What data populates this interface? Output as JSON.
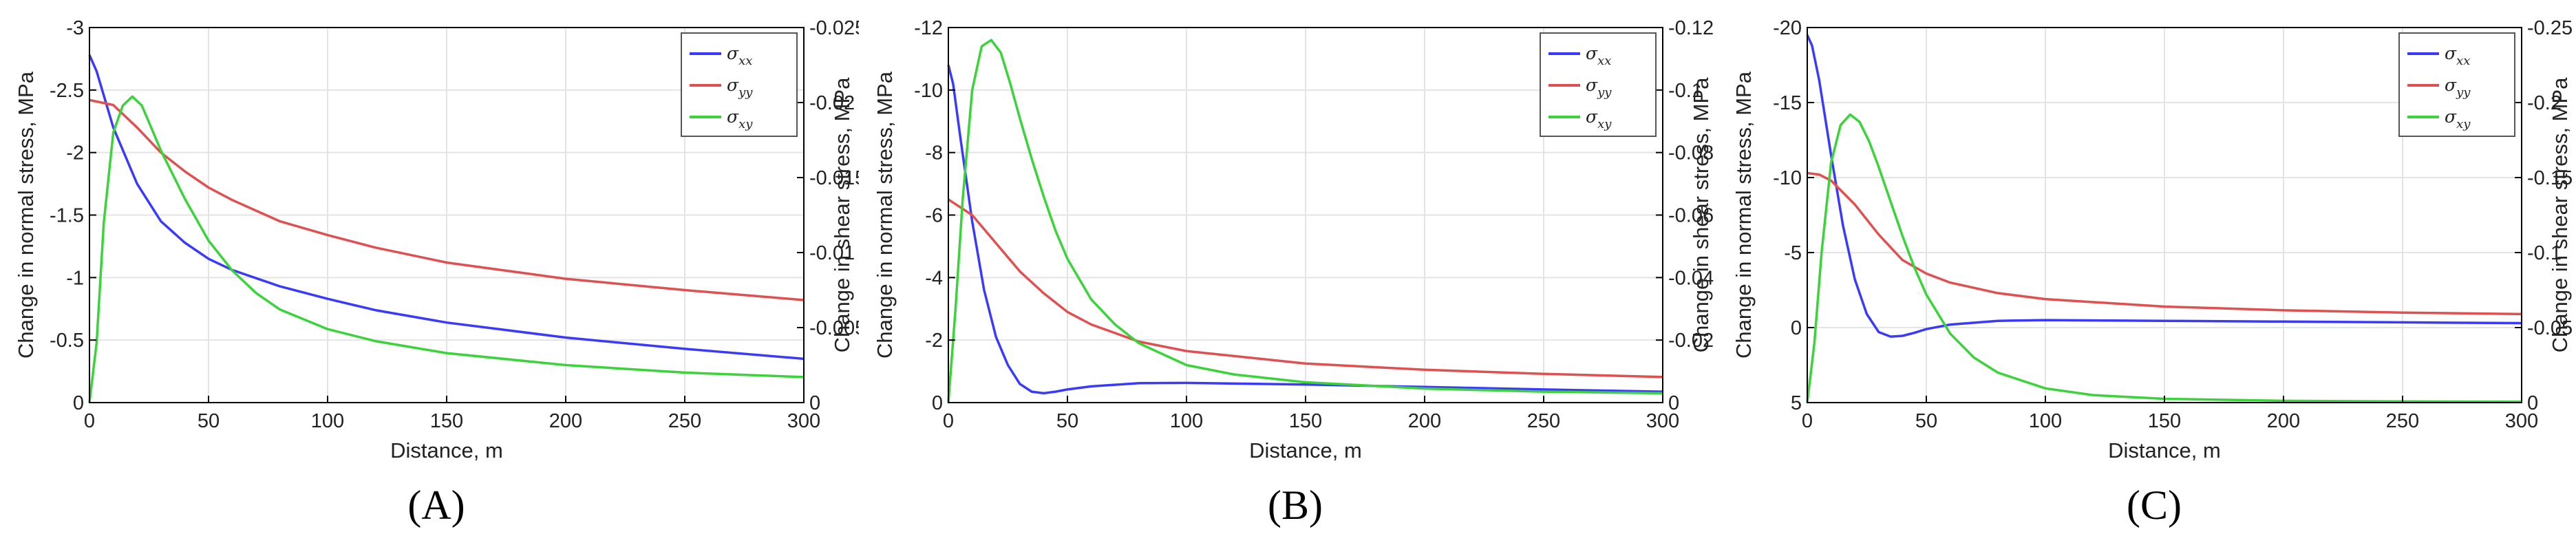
{
  "chart_data": [
    {
      "type": "line",
      "caption": "(A)",
      "xlabel": "Distance, m",
      "ylabel": "Change in normal stress, MPa",
      "ylabel_right": "Change in shear stress, MPa",
      "xlim": [
        0,
        300
      ],
      "ylim": [
        0,
        -3
      ],
      "ylim_right": [
        0,
        -0.025
      ],
      "x_ticks": [
        "0",
        "50",
        "100",
        "150",
        "200",
        "250",
        "300"
      ],
      "y_ticks": [
        "0",
        "-0.5",
        "-1",
        "-1.5",
        "-2",
        "-2.5",
        "-3"
      ],
      "y_ticks_right": [
        "0",
        "-0.005",
        "-0.01",
        "-0.015",
        "-0.02",
        "-0.025"
      ],
      "grid": true,
      "legend_position": "top-right",
      "series": [
        {
          "name": "σxx",
          "label_main": "σ",
          "label_sub": "xx",
          "axis": "left",
          "color": "#3a3aff",
          "x": [
            0,
            3,
            10,
            20,
            30,
            40,
            50,
            60,
            80,
            100,
            120,
            150,
            200,
            250,
            300
          ],
          "y": [
            -2.78,
            -2.65,
            -2.2,
            -1.75,
            -1.45,
            -1.28,
            -1.15,
            -1.06,
            -0.93,
            -0.83,
            -0.74,
            -0.64,
            -0.52,
            -0.43,
            -0.35
          ]
        },
        {
          "name": "σyy",
          "label_main": "σ",
          "label_sub": "yy",
          "axis": "left",
          "color": "#e05050",
          "x": [
            0,
            10,
            20,
            30,
            40,
            50,
            60,
            80,
            100,
            120,
            150,
            200,
            250,
            300
          ],
          "y": [
            -2.42,
            -2.38,
            -2.2,
            -2.0,
            -1.85,
            -1.72,
            -1.62,
            -1.45,
            -1.34,
            -1.24,
            -1.12,
            -0.99,
            -0.9,
            -0.82
          ]
        },
        {
          "name": "σxy",
          "label_main": "σ",
          "label_sub": "xy",
          "axis": "right",
          "color": "#3ad43a",
          "x": [
            0,
            3,
            6,
            10,
            14,
            18,
            22,
            26,
            30,
            35,
            40,
            50,
            60,
            70,
            80,
            100,
            120,
            150,
            200,
            250,
            300
          ],
          "y": [
            0,
            -0.004,
            -0.012,
            -0.018,
            -0.0198,
            -0.0204,
            -0.0198,
            -0.0183,
            -0.0168,
            -0.0152,
            -0.0136,
            -0.0108,
            -0.0088,
            -0.0073,
            -0.0062,
            -0.0049,
            -0.0041,
            -0.0033,
            -0.0025,
            -0.002,
            -0.0017
          ]
        }
      ]
    },
    {
      "type": "line",
      "caption": "(B)",
      "xlabel": "Distance, m",
      "ylabel": "Change in normal stress, MPa",
      "ylabel_right": "Change in shear stress, MPa",
      "xlim": [
        0,
        300
      ],
      "ylim": [
        0,
        -12
      ],
      "ylim_right": [
        0,
        -0.12
      ],
      "x_ticks": [
        "0",
        "50",
        "100",
        "150",
        "200",
        "250",
        "300"
      ],
      "y_ticks": [
        "0",
        "-2",
        "-4",
        "-6",
        "-8",
        "-10",
        "-12"
      ],
      "y_ticks_right": [
        "0",
        "-0.02",
        "-0.04",
        "-0.06",
        "-0.08",
        "-0.1",
        "-0.12"
      ],
      "grid": true,
      "legend_position": "top-right",
      "series": [
        {
          "name": "σxx",
          "label_main": "σ",
          "label_sub": "xx",
          "axis": "left",
          "color": "#3a3aff",
          "x": [
            0,
            2,
            5,
            10,
            15,
            20,
            25,
            30,
            35,
            40,
            45,
            50,
            60,
            80,
            100,
            150,
            200,
            250,
            300
          ],
          "y": [
            -10.8,
            -10.2,
            -8.5,
            -5.8,
            -3.6,
            -2.1,
            -1.2,
            -0.6,
            -0.35,
            -0.3,
            -0.35,
            -0.42,
            -0.52,
            -0.62,
            -0.63,
            -0.58,
            -0.5,
            -0.42,
            -0.35
          ]
        },
        {
          "name": "σyy",
          "label_main": "σ",
          "label_sub": "yy",
          "axis": "left",
          "color": "#e05050",
          "x": [
            0,
            10,
            20,
            30,
            40,
            50,
            60,
            80,
            100,
            150,
            200,
            250,
            300
          ],
          "y": [
            -6.5,
            -6.0,
            -5.1,
            -4.2,
            -3.5,
            -2.9,
            -2.5,
            -1.95,
            -1.65,
            -1.25,
            -1.05,
            -0.92,
            -0.82
          ]
        },
        {
          "name": "σxy",
          "label_main": "σ",
          "label_sub": "xy",
          "axis": "right",
          "color": "#3ad43a",
          "x": [
            0,
            3,
            6,
            10,
            14,
            18,
            22,
            26,
            30,
            35,
            40,
            45,
            50,
            60,
            70,
            80,
            100,
            120,
            150,
            200,
            250,
            300
          ],
          "y": [
            0,
            -0.03,
            -0.065,
            -0.1,
            -0.114,
            -0.116,
            -0.112,
            -0.102,
            -0.091,
            -0.078,
            -0.066,
            -0.055,
            -0.046,
            -0.033,
            -0.025,
            -0.019,
            -0.012,
            -0.009,
            -0.0065,
            -0.0045,
            -0.0035,
            -0.003
          ]
        }
      ]
    },
    {
      "type": "line",
      "caption": "(C)",
      "xlabel": "Distance, m",
      "ylabel": "Change in normal stress, MPa",
      "ylabel_right": "Change in shear stress, MPa",
      "xlim": [
        0,
        300
      ],
      "ylim": [
        5,
        -20
      ],
      "ylim_right": [
        0,
        -0.25
      ],
      "x_ticks": [
        "0",
        "50",
        "100",
        "150",
        "200",
        "250",
        "300"
      ],
      "y_ticks": [
        "5",
        "0",
        "-5",
        "-10",
        "-15",
        "-20"
      ],
      "y_ticks_right": [
        "0",
        "-0.05",
        "-0.1",
        "-0.15",
        "-0.2",
        "-0.25"
      ],
      "grid": true,
      "legend_position": "top-right",
      "series": [
        {
          "name": "σxx",
          "label_main": "σ",
          "label_sub": "xx",
          "axis": "left",
          "color": "#3a3aff",
          "x": [
            0,
            2,
            5,
            10,
            15,
            20,
            25,
            30,
            35,
            40,
            45,
            50,
            60,
            80,
            100,
            150,
            200,
            250,
            300
          ],
          "y": [
            -19.5,
            -18.8,
            -16.5,
            -11.5,
            -6.8,
            -3.2,
            -0.9,
            0.3,
            0.6,
            0.55,
            0.35,
            0.1,
            -0.2,
            -0.45,
            -0.5,
            -0.45,
            -0.4,
            -0.35,
            -0.3
          ]
        },
        {
          "name": "σyy",
          "label_main": "σ",
          "label_sub": "yy",
          "axis": "left",
          "color": "#e05050",
          "x": [
            0,
            5,
            10,
            20,
            30,
            40,
            50,
            60,
            80,
            100,
            150,
            200,
            250,
            300
          ],
          "y": [
            -10.3,
            -10.2,
            -9.8,
            -8.2,
            -6.2,
            -4.5,
            -3.6,
            -3.0,
            -2.3,
            -1.9,
            -1.4,
            -1.15,
            -1.0,
            -0.9
          ]
        },
        {
          "name": "σxy",
          "label_main": "σ",
          "label_sub": "xy",
          "axis": "right",
          "color": "#3ad43a",
          "x": [
            0,
            3,
            6,
            10,
            14,
            18,
            22,
            26,
            30,
            35,
            40,
            45,
            50,
            60,
            70,
            80,
            100,
            120,
            150,
            200,
            250,
            300
          ],
          "y": [
            0,
            -0.04,
            -0.1,
            -0.16,
            -0.185,
            -0.192,
            -0.187,
            -0.174,
            -0.157,
            -0.134,
            -0.111,
            -0.09,
            -0.072,
            -0.046,
            -0.03,
            -0.02,
            -0.0095,
            -0.005,
            -0.0025,
            -0.0012,
            -0.0008,
            -0.0006
          ]
        }
      ]
    }
  ]
}
